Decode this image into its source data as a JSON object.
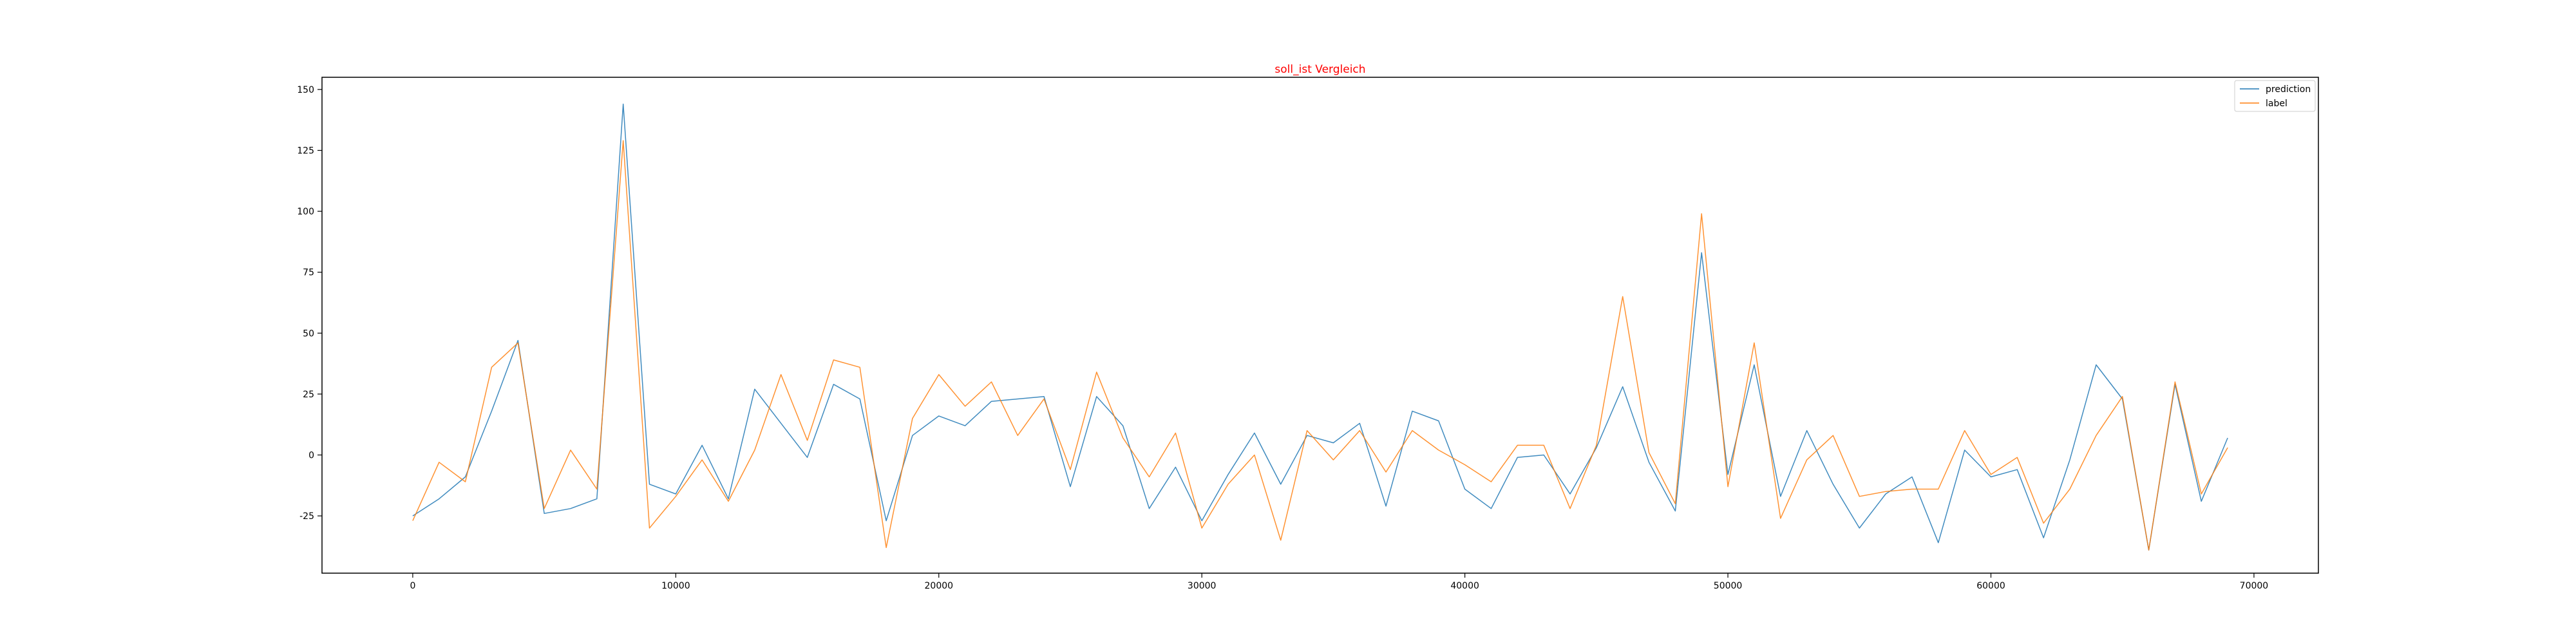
{
  "chart_data": {
    "type": "line",
    "title": "soll_ist Vergleich",
    "title_color": "#ff0000",
    "xlabel": "",
    "ylabel": "",
    "xlim": [
      -3450,
      72450
    ],
    "ylim": [
      -48.5,
      155
    ],
    "x_ticks": [
      0,
      10000,
      20000,
      30000,
      40000,
      50000,
      60000,
      70000
    ],
    "y_ticks": [
      -25,
      0,
      25,
      50,
      75,
      100,
      125,
      150
    ],
    "grid": false,
    "legend_position": "top-right",
    "x": [
      0,
      1000,
      2000,
      3000,
      4000,
      5000,
      6000,
      7000,
      8000,
      9000,
      10000,
      11000,
      12000,
      13000,
      14000,
      15000,
      16000,
      17000,
      18000,
      19000,
      20000,
      21000,
      22000,
      23000,
      24000,
      25000,
      26000,
      27000,
      28000,
      29000,
      30000,
      31000,
      32000,
      33000,
      34000,
      35000,
      36000,
      37000,
      38000,
      39000,
      40000,
      41000,
      42000,
      43000,
      44000,
      45000,
      46000,
      47000,
      48000,
      49000,
      50000,
      51000,
      52000,
      53000,
      54000,
      55000,
      56000,
      57000,
      58000,
      59000,
      60000,
      61000,
      62000,
      63000,
      64000,
      65000,
      66000,
      67000,
      68000,
      69000
    ],
    "series": [
      {
        "name": "prediction",
        "color": "#1f77b4",
        "values": [
          -25,
          -18,
          -9,
          18,
          47,
          -24,
          -22,
          -18,
          144,
          -12,
          -16,
          4,
          -18,
          27,
          13,
          -1,
          29,
          23,
          -27,
          8,
          16,
          12,
          22,
          23,
          24,
          -13,
          24,
          12,
          -22,
          -5,
          -27,
          -8,
          9,
          -12,
          8,
          5,
          13,
          -21,
          18,
          14,
          -14,
          -22,
          -1,
          0,
          -16,
          3,
          28,
          -3,
          -23,
          83,
          -8,
          37,
          -17,
          10,
          -12,
          -30,
          -16,
          -9,
          -36,
          2,
          -9,
          -6,
          -34,
          -2,
          37,
          23,
          -39,
          29,
          -19,
          7
        ]
      },
      {
        "name": "label",
        "color": "#ff7f0e",
        "values": [
          -27,
          -3,
          -11,
          36,
          46,
          -22,
          2,
          -14,
          129,
          -30,
          -17,
          -2,
          -19,
          2,
          33,
          6,
          39,
          36,
          -38,
          15,
          33,
          20,
          30,
          8,
          23,
          -6,
          34,
          7,
          -9,
          9,
          -30,
          -12,
          0,
          -35,
          10,
          -2,
          10,
          -7,
          10,
          2,
          -4,
          -11,
          4,
          4,
          -22,
          4,
          65,
          1,
          -20,
          99,
          -13,
          46,
          -26,
          -2,
          8,
          -17,
          -15,
          -14,
          -14,
          10,
          -8,
          -1,
          -28,
          -14,
          8,
          24,
          -39,
          30,
          -16,
          3
        ]
      }
    ]
  }
}
